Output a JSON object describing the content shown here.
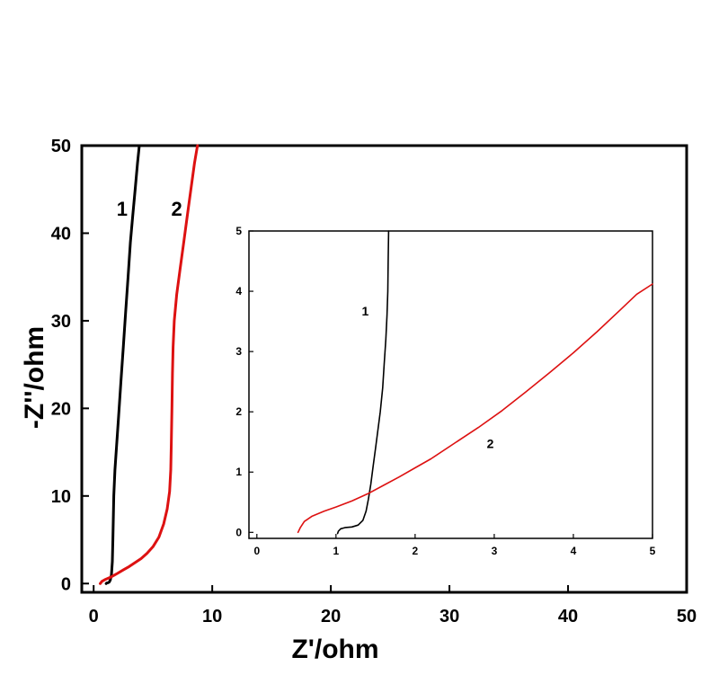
{
  "chart_data": [
    {
      "type": "line",
      "xlabel": "Z'/ohm",
      "ylabel": "-Z''/ohm",
      "xlim": [
        -1,
        50
      ],
      "ylim": [
        -1,
        50
      ],
      "xticks": [
        0,
        10,
        20,
        30,
        40,
        50
      ],
      "yticks": [
        0,
        10,
        20,
        30,
        40,
        50
      ],
      "grid": false,
      "series": [
        {
          "name": "1",
          "color": "#000000",
          "x": [
            1.05,
            1.1,
            1.2,
            1.3,
            1.4,
            1.5,
            1.58,
            1.62,
            1.65,
            1.7,
            1.8,
            1.95,
            2.1,
            2.3,
            2.5,
            2.7,
            2.9,
            3.1,
            3.3,
            3.5,
            3.7,
            3.85
          ],
          "y": [
            0.0,
            0.06,
            0.09,
            0.15,
            0.4,
            1.0,
            2.5,
            5,
            7,
            10,
            13,
            16,
            19,
            23,
            27,
            31,
            35,
            39,
            42,
            45,
            48,
            50
          ]
        },
        {
          "name": "2",
          "color": "#dd1111",
          "x": [
            0.55,
            0.7,
            1.0,
            1.5,
            2.0,
            2.5,
            3.0,
            3.5,
            4.0,
            4.5,
            5.0,
            5.5,
            5.9,
            6.2,
            6.4,
            6.5,
            6.55,
            6.6,
            6.65,
            6.7,
            6.8,
            7.0,
            7.3,
            7.6,
            7.9,
            8.2,
            8.5,
            8.75
          ],
          "y": [
            0.0,
            0.25,
            0.48,
            0.78,
            1.15,
            1.55,
            1.95,
            2.4,
            2.85,
            3.45,
            4.2,
            5.3,
            6.8,
            8.5,
            10.5,
            13,
            16,
            20,
            24,
            27,
            30,
            33,
            36,
            39,
            42,
            45,
            48,
            50
          ]
        }
      ],
      "annotations": [
        {
          "text": "1",
          "x": 2.4,
          "y": 42
        },
        {
          "text": "2",
          "x": 7.0,
          "y": 42
        }
      ]
    },
    {
      "type": "line",
      "inset": true,
      "xlim": [
        -0.1,
        5
      ],
      "ylim": [
        -0.1,
        5
      ],
      "xticks": [
        0,
        1,
        2,
        3,
        4,
        5
      ],
      "yticks": [
        0,
        1,
        2,
        3,
        4,
        5
      ],
      "grid": false,
      "series": [
        {
          "name": "1",
          "color": "#000000",
          "x": [
            1.02,
            1.03,
            1.06,
            1.12,
            1.2,
            1.28,
            1.34,
            1.38,
            1.41,
            1.44,
            1.47,
            1.5,
            1.53,
            1.56,
            1.59,
            1.61,
            1.63,
            1.645,
            1.655,
            1.66,
            1.665
          ],
          "y": [
            -0.02,
            0.02,
            0.06,
            0.08,
            0.09,
            0.12,
            0.2,
            0.35,
            0.55,
            0.8,
            1.1,
            1.4,
            1.7,
            2.0,
            2.4,
            2.8,
            3.2,
            3.6,
            4.0,
            4.5,
            5.0
          ]
        },
        {
          "name": "2",
          "color": "#dd1111",
          "x": [
            0.52,
            0.55,
            0.6,
            0.7,
            0.85,
            1.0,
            1.2,
            1.4,
            1.6,
            1.8,
            2.0,
            2.2,
            2.5,
            2.8,
            3.1,
            3.4,
            3.7,
            4.0,
            4.3,
            4.6,
            4.8,
            5.0
          ],
          "y": [
            0.0,
            0.08,
            0.18,
            0.27,
            0.35,
            0.42,
            0.52,
            0.64,
            0.78,
            0.92,
            1.07,
            1.22,
            1.48,
            1.74,
            2.02,
            2.33,
            2.65,
            2.98,
            3.33,
            3.7,
            3.95,
            4.12
          ]
        }
      ],
      "annotations": [
        {
          "text": "1",
          "x": 1.37,
          "y": 3.6
        },
        {
          "text": "2",
          "x": 2.95,
          "y": 1.4
        }
      ]
    }
  ]
}
